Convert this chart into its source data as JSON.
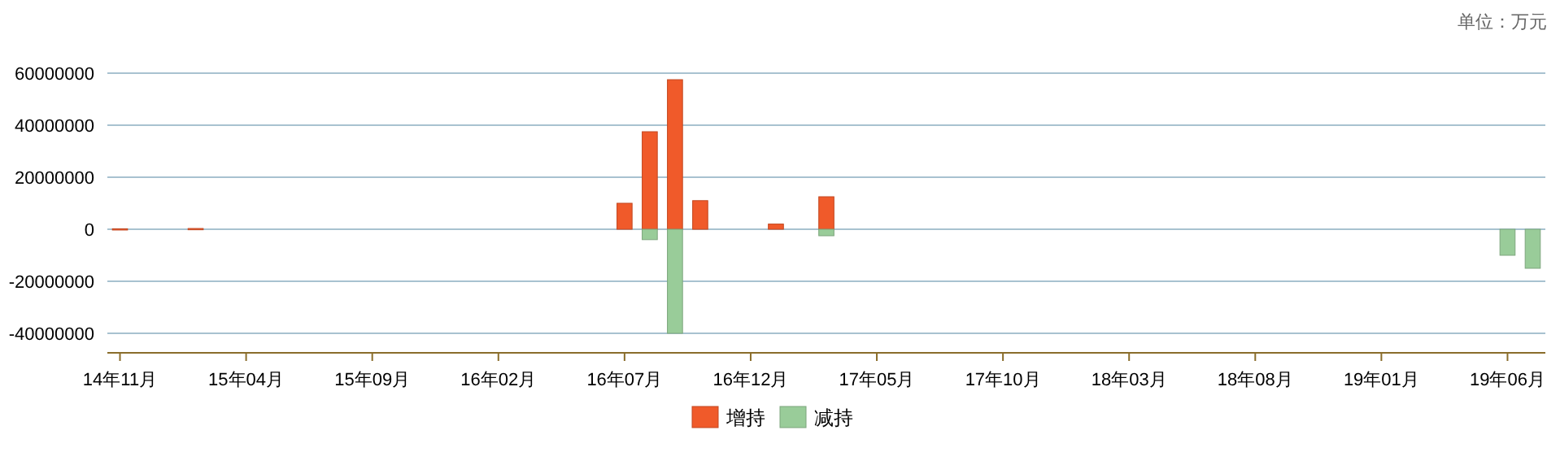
{
  "chart_data": {
    "type": "bar",
    "categories": [
      "14年11月",
      null,
      null,
      null,
      null,
      "15年04月",
      null,
      null,
      null,
      null,
      "15年09月",
      null,
      null,
      null,
      null,
      "16年02月",
      null,
      null,
      null,
      null,
      "16年07月",
      null,
      null,
      null,
      null,
      "16年12月",
      null,
      null,
      null,
      null,
      "17年05月",
      null,
      null,
      null,
      null,
      "17年10月",
      null,
      null,
      null,
      null,
      "18年03月",
      null,
      null,
      null,
      null,
      "18年08月",
      null,
      null,
      null,
      null,
      "19年01月",
      null,
      null,
      null,
      null,
      "19年06月",
      null
    ],
    "series": [
      {
        "name": "增持",
        "color": "#f05a2a",
        "values": [
          200000,
          null,
          null,
          300000,
          null,
          null,
          null,
          null,
          null,
          null,
          null,
          null,
          null,
          null,
          null,
          null,
          null,
          null,
          null,
          null,
          10000000,
          37500000,
          57500000,
          11000000,
          null,
          null,
          2000000,
          null,
          12500000,
          null,
          null,
          null,
          null,
          null,
          null,
          null,
          null,
          null,
          null,
          null,
          null,
          null,
          null,
          null,
          null,
          null,
          null,
          null,
          null,
          null,
          null,
          null,
          null,
          null,
          null,
          null,
          null
        ]
      },
      {
        "name": "减持",
        "color": "#99cc99",
        "values": [
          null,
          null,
          null,
          null,
          null,
          null,
          null,
          null,
          null,
          null,
          null,
          null,
          null,
          null,
          null,
          null,
          null,
          null,
          null,
          null,
          null,
          -4000000,
          -40000000,
          null,
          null,
          null,
          null,
          null,
          -2500000,
          null,
          null,
          null,
          null,
          null,
          null,
          null,
          null,
          null,
          null,
          null,
          null,
          null,
          null,
          null,
          null,
          null,
          null,
          null,
          null,
          null,
          null,
          null,
          null,
          null,
          null,
          -10000000,
          -15000000
        ]
      }
    ],
    "ylim": [
      -47500000,
      60000000
    ],
    "yticks": [
      -40000000,
      -20000000,
      0,
      20000000,
      40000000,
      60000000
    ],
    "grid": "y",
    "legend": "bottom",
    "annotations": [
      "单位：万元"
    ]
  }
}
